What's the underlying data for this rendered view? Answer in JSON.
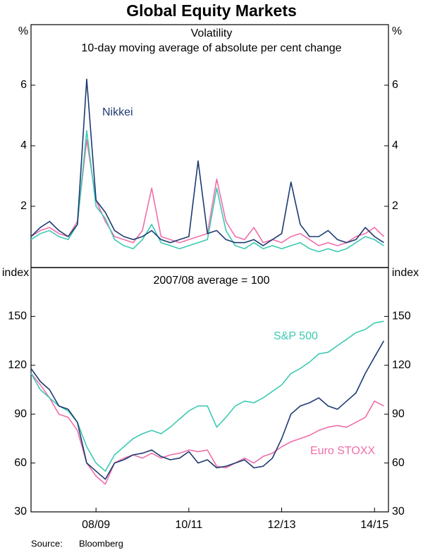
{
  "title": "Global Equity Markets",
  "source_label": "Source:",
  "source": "Bloomberg",
  "chart_data": [
    {
      "type": "line",
      "title": "Volatility",
      "subtitle": "10-day moving average of absolute per cent change",
      "ylabel": "%",
      "ylim": [
        0,
        8
      ],
      "yticks": [
        2,
        4,
        6
      ],
      "xlim": [
        2007.6,
        2015.3
      ],
      "x": [
        2007.6,
        2007.8,
        2008.0,
        2008.2,
        2008.4,
        2008.6,
        2008.8,
        2009.0,
        2009.2,
        2009.4,
        2009.6,
        2009.8,
        2010.0,
        2010.2,
        2010.4,
        2010.6,
        2010.8,
        2011.0,
        2011.2,
        2011.4,
        2011.6,
        2011.8,
        2012.0,
        2012.2,
        2012.4,
        2012.6,
        2012.8,
        2013.0,
        2013.2,
        2013.4,
        2013.6,
        2013.8,
        2014.0,
        2014.2,
        2014.4,
        2014.6,
        2014.8,
        2015.0,
        2015.2
      ],
      "series": [
        {
          "name": "Nikkei",
          "color": "#1d3a72",
          "values": [
            1.0,
            1.3,
            1.5,
            1.2,
            1.0,
            1.4,
            6.2,
            2.2,
            1.8,
            1.2,
            1.0,
            0.9,
            1.0,
            1.2,
            0.9,
            0.8,
            0.9,
            1.0,
            3.5,
            1.1,
            1.2,
            0.9,
            0.8,
            0.8,
            0.9,
            0.7,
            0.9,
            1.1,
            2.8,
            1.4,
            1.0,
            1.0,
            1.2,
            0.9,
            0.8,
            0.9,
            1.3,
            1.0,
            0.8
          ]
        },
        {
          "name": "S&P 500",
          "color": "#3ccab2",
          "values": [
            0.9,
            1.1,
            1.2,
            1.0,
            0.9,
            1.4,
            4.5,
            2.0,
            1.6,
            0.9,
            0.7,
            0.6,
            0.9,
            1.4,
            0.8,
            0.7,
            0.6,
            0.7,
            0.8,
            0.9,
            2.6,
            1.2,
            0.7,
            0.6,
            0.8,
            0.6,
            0.7,
            0.6,
            0.7,
            0.8,
            0.6,
            0.5,
            0.6,
            0.5,
            0.6,
            0.8,
            1.0,
            0.9,
            0.7
          ]
        },
        {
          "name": "Euro STOXX",
          "color": "#f06ea9",
          "values": [
            1.0,
            1.2,
            1.3,
            1.1,
            1.0,
            1.5,
            4.2,
            2.2,
            1.5,
            1.0,
            0.9,
            0.8,
            1.2,
            2.6,
            1.0,
            0.9,
            0.8,
            0.9,
            1.0,
            1.1,
            2.9,
            1.5,
            1.0,
            0.9,
            1.3,
            0.8,
            0.9,
            0.8,
            1.0,
            1.1,
            0.9,
            0.7,
            0.8,
            0.7,
            0.8,
            1.0,
            1.1,
            1.3,
            1.0
          ]
        }
      ]
    },
    {
      "type": "line",
      "title": "2007/08 average = 100",
      "ylabel": "index",
      "ylim": [
        30,
        180
      ],
      "yticks": [
        30,
        60,
        90,
        120,
        150
      ],
      "xlim": [
        2007.6,
        2015.3
      ],
      "xticks": [
        {
          "value": 2009,
          "label": "08/09"
        },
        {
          "value": 2011,
          "label": "10/11"
        },
        {
          "value": 2013,
          "label": "12/13"
        },
        {
          "value": 2015,
          "label": "14/15"
        }
      ],
      "x": [
        2007.6,
        2007.8,
        2008.0,
        2008.2,
        2008.4,
        2008.6,
        2008.8,
        2009.0,
        2009.2,
        2009.4,
        2009.6,
        2009.8,
        2010.0,
        2010.2,
        2010.4,
        2010.6,
        2010.8,
        2011.0,
        2011.2,
        2011.4,
        2011.6,
        2011.8,
        2012.0,
        2012.2,
        2012.4,
        2012.6,
        2012.8,
        2013.0,
        2013.2,
        2013.4,
        2013.6,
        2013.8,
        2014.0,
        2014.2,
        2014.4,
        2014.6,
        2014.8,
        2015.0,
        2015.2
      ],
      "series": [
        {
          "name": "Nikkei",
          "color": "#1d3a72",
          "values": [
            118,
            110,
            105,
            95,
            93,
            85,
            60,
            55,
            50,
            60,
            62,
            65,
            66,
            68,
            64,
            62,
            63,
            67,
            60,
            62,
            57,
            58,
            60,
            62,
            57,
            58,
            63,
            75,
            90,
            95,
            97,
            100,
            95,
            93,
            98,
            103,
            115,
            125,
            135
          ]
        },
        {
          "name": "S&P 500",
          "color": "#3ccab2",
          "values": [
            115,
            105,
            100,
            95,
            92,
            85,
            70,
            60,
            55,
            65,
            70,
            75,
            78,
            80,
            78,
            82,
            87,
            92,
            95,
            95,
            82,
            88,
            95,
            98,
            97,
            100,
            104,
            108,
            115,
            118,
            122,
            127,
            128,
            132,
            136,
            140,
            142,
            146,
            147
          ]
        },
        {
          "name": "Euro STOXX",
          "color": "#f06ea9",
          "values": [
            115,
            108,
            100,
            90,
            88,
            80,
            60,
            52,
            47,
            60,
            63,
            65,
            63,
            66,
            63,
            65,
            66,
            68,
            67,
            68,
            58,
            57,
            60,
            63,
            60,
            64,
            66,
            70,
            73,
            75,
            77,
            80,
            82,
            83,
            82,
            85,
            88,
            98,
            95
          ]
        }
      ]
    }
  ]
}
